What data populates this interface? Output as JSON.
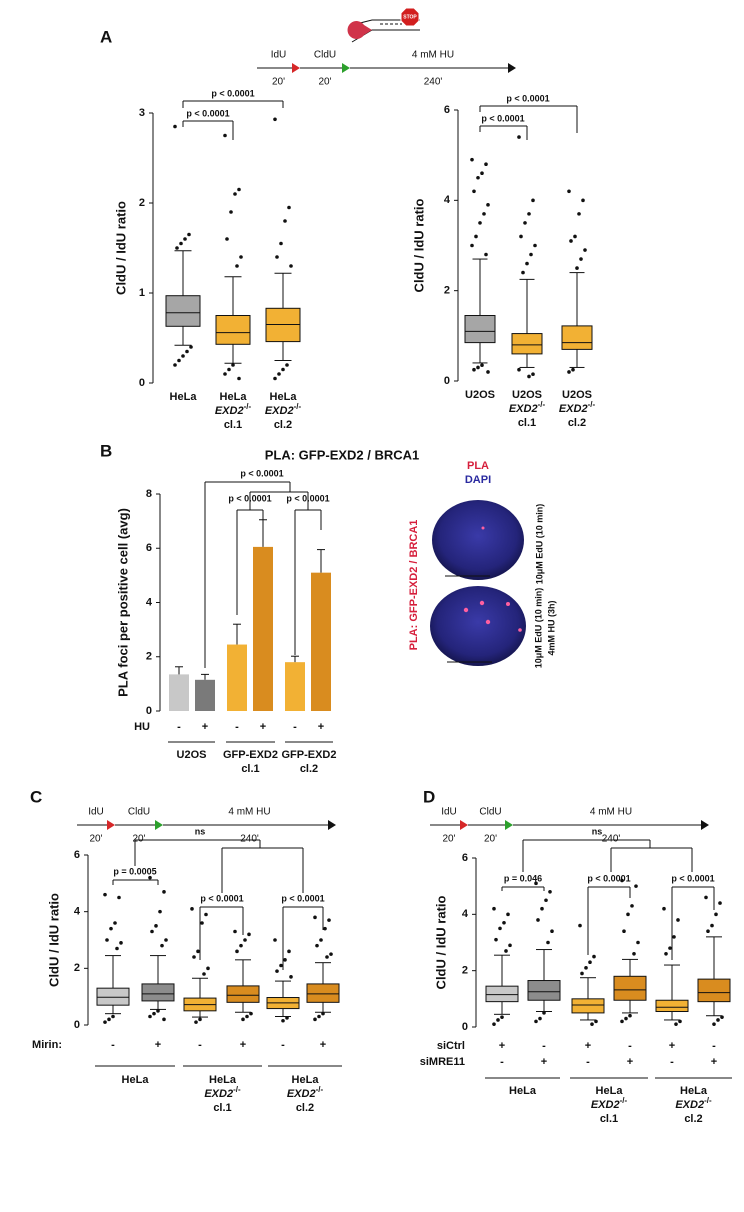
{
  "panels": [
    "A",
    "B",
    "C",
    "D"
  ],
  "fork_icon": "STOP",
  "schematics": [
    {
      "labels": [
        "IdU",
        "20'",
        "CldU",
        "20'",
        "4 mM HU",
        "240'"
      ]
    },
    {
      "labels": [
        "IdU",
        "20'",
        "CldU",
        "20'",
        "4 mM HU",
        "240'"
      ]
    },
    {
      "labels": [
        "IdU",
        "20'",
        "CldU",
        "20'",
        "4 mM HU",
        "240'"
      ]
    }
  ],
  "micrograph": {
    "legend": [
      "PLA",
      "DAPI"
    ],
    "stain_label": "PLA: GFP-EXD2 / BRCA1",
    "conditions": [
      [
        "10μM EdU (10 min)"
      ],
      [
        "10μM EdU (10 min)",
        "4mM HU (3h)"
      ]
    ]
  },
  "chart_data": [
    {
      "type": "box",
      "ylabel": "CldU / IdU ratio",
      "ylim": [
        0,
        3
      ],
      "yticks": [
        0,
        1,
        2,
        3
      ],
      "categories": [
        [
          "HeLa"
        ],
        [
          "HeLa",
          [
            "EXD2",
            "-/-"
          ],
          "cl.1"
        ],
        [
          "HeLa",
          [
            "EXD2",
            "-/-"
          ],
          "cl.2"
        ]
      ],
      "colors": [
        "#a6a6a6",
        "#f2b134",
        "#f2b134"
      ],
      "boxes": [
        {
          "low": 0.42,
          "q1": 0.63,
          "median": 0.78,
          "q3": 0.97,
          "high": 1.47,
          "outliers": [
            2.85,
            1.65,
            1.6,
            1.55,
            1.5,
            0.4,
            0.35,
            0.3,
            0.25,
            0.2
          ]
        },
        {
          "low": 0.22,
          "q1": 0.43,
          "median": 0.56,
          "q3": 0.75,
          "high": 1.18,
          "outliers": [
            2.75,
            2.15,
            2.1,
            1.9,
            1.6,
            1.4,
            1.3,
            0.2,
            0.15,
            0.1,
            0.05
          ]
        },
        {
          "low": 0.25,
          "q1": 0.46,
          "median": 0.65,
          "q3": 0.83,
          "high": 1.22,
          "outliers": [
            2.93,
            1.95,
            1.8,
            1.55,
            1.4,
            1.3,
            0.2,
            0.15,
            0.1,
            0.05
          ]
        }
      ],
      "annotations": [
        "p < 0.0001",
        "p < 0.0001"
      ]
    },
    {
      "type": "box",
      "ylabel": "CldU / IdU ratio",
      "ylim": [
        0,
        6
      ],
      "yticks": [
        0,
        2,
        4,
        6
      ],
      "categories": [
        [
          "U2OS"
        ],
        [
          "U2OS",
          [
            "EXD2",
            "-/-"
          ],
          "cl.1"
        ],
        [
          "U2OS",
          [
            "EXD2",
            "-/-"
          ],
          "cl.2"
        ]
      ],
      "colors": [
        "#a6a6a6",
        "#f2b134",
        "#f2b134"
      ],
      "boxes": [
        {
          "low": 0.4,
          "q1": 0.85,
          "median": 1.1,
          "q3": 1.45,
          "high": 2.7,
          "outliers": [
            4.9,
            4.8,
            4.6,
            4.5,
            4.2,
            3.9,
            3.7,
            3.5,
            3.2,
            3.0,
            2.8,
            0.35,
            0.3,
            0.25,
            0.2
          ]
        },
        {
          "low": 0.3,
          "q1": 0.6,
          "median": 0.8,
          "q3": 1.05,
          "high": 2.25,
          "outliers": [
            5.4,
            4.0,
            3.7,
            3.5,
            3.2,
            3.0,
            2.8,
            2.6,
            2.4,
            0.25,
            0.15,
            0.1
          ]
        },
        {
          "low": 0.3,
          "q1": 0.7,
          "median": 0.85,
          "q3": 1.22,
          "high": 2.4,
          "outliers": [
            4.2,
            4.0,
            3.7,
            3.2,
            3.1,
            2.9,
            2.7,
            2.5,
            0.25,
            0.2
          ]
        }
      ],
      "annotations": [
        "p < 0.0001",
        "p < 0.0001"
      ]
    },
    {
      "type": "bar",
      "title": "PLA: GFP-EXD2 / BRCA1",
      "ylabel": "PLA foci per positive cell (avg)",
      "ylim": [
        0,
        8
      ],
      "yticks": [
        0,
        2,
        4,
        6,
        8
      ],
      "values": [
        1.35,
        1.15,
        2.45,
        6.05,
        1.8,
        5.1
      ],
      "errors": [
        0.28,
        0.2,
        0.75,
        1.0,
        0.22,
        0.85
      ],
      "colors": [
        "#c8c8c8",
        "#7a7a7a",
        "#f2b134",
        "#d98c1f",
        "#f2b134",
        "#d98c1f"
      ],
      "treatment_rows": [
        {
          "name": "HU",
          "signs": [
            "-",
            "+",
            "-",
            "+",
            "-",
            "+"
          ]
        }
      ],
      "groups": [
        [
          "U2OS"
        ],
        [
          "GFP-EXD2",
          "cl.1"
        ],
        [
          "GFP-EXD2",
          "cl.2"
        ]
      ],
      "annotations": [
        "p < 0.0001",
        "p < 0.0001",
        "p < 0.0001"
      ]
    },
    {
      "type": "box",
      "ylabel": "CldU / IdU ratio",
      "ylim": [
        0,
        6
      ],
      "yticks": [
        0,
        2,
        4,
        6
      ],
      "colors": [
        "#c8c8c8",
        "#8c8c8c",
        "#f2b134",
        "#d98c1f",
        "#f2b134",
        "#d98c1f"
      ],
      "boxes": [
        {
          "low": 0.4,
          "q1": 0.7,
          "median": 0.98,
          "q3": 1.3,
          "high": 2.45,
          "outliers": [
            4.6,
            4.5,
            3.6,
            3.4,
            3.0,
            2.9,
            2.7,
            0.3,
            0.2,
            0.1
          ]
        },
        {
          "low": 0.55,
          "q1": 0.85,
          "median": 1.1,
          "q3": 1.45,
          "high": 2.45,
          "outliers": [
            5.2,
            4.7,
            4.0,
            3.5,
            3.3,
            3.0,
            2.8,
            0.5,
            0.4,
            0.3,
            0.2
          ]
        },
        {
          "low": 0.28,
          "q1": 0.5,
          "median": 0.72,
          "q3": 0.95,
          "high": 1.65,
          "outliers": [
            4.1,
            3.9,
            3.6,
            2.6,
            2.4,
            2.0,
            1.8,
            0.2,
            0.1
          ]
        },
        {
          "low": 0.45,
          "q1": 0.8,
          "median": 1.05,
          "q3": 1.38,
          "high": 2.3,
          "outliers": [
            3.3,
            3.2,
            3.0,
            2.8,
            2.6,
            0.4,
            0.3,
            0.2
          ]
        },
        {
          "low": 0.3,
          "q1": 0.58,
          "median": 0.78,
          "q3": 0.97,
          "high": 1.55,
          "outliers": [
            3.0,
            2.6,
            2.3,
            2.1,
            1.9,
            1.7,
            0.25,
            0.15
          ]
        },
        {
          "low": 0.45,
          "q1": 0.8,
          "median": 1.1,
          "q3": 1.45,
          "high": 2.2,
          "outliers": [
            3.8,
            3.7,
            3.4,
            3.0,
            2.8,
            2.5,
            2.4,
            0.4,
            0.3,
            0.2
          ]
        }
      ],
      "treatment_rows": [
        {
          "name": "Mirin:",
          "signs": [
            "-",
            "+",
            "-",
            "+",
            "-",
            "+"
          ]
        }
      ],
      "groups": [
        [
          "HeLa"
        ],
        [
          "HeLa",
          [
            "EXD2",
            "-/-"
          ],
          "cl.1"
        ],
        [
          "HeLa",
          [
            "EXD2",
            "-/-"
          ],
          "cl.2"
        ]
      ],
      "annotations": [
        "p = 0.0005",
        "p < 0.0001",
        "p < 0.0001",
        "ns"
      ]
    },
    {
      "type": "box",
      "ylabel": "CldU / IdU ratio",
      "ylim": [
        0,
        6
      ],
      "yticks": [
        0,
        2,
        4,
        6
      ],
      "colors": [
        "#c8c8c8",
        "#8c8c8c",
        "#f2b134",
        "#d98c1f",
        "#f2b134",
        "#d98c1f"
      ],
      "boxes": [
        {
          "low": 0.45,
          "q1": 0.9,
          "median": 1.15,
          "q3": 1.45,
          "high": 2.55,
          "outliers": [
            4.2,
            4.0,
            3.7,
            3.5,
            3.1,
            2.9,
            2.7,
            0.35,
            0.25,
            0.1
          ]
        },
        {
          "low": 0.55,
          "q1": 0.95,
          "median": 1.25,
          "q3": 1.65,
          "high": 2.75,
          "outliers": [
            5.1,
            4.8,
            4.5,
            4.2,
            3.8,
            3.4,
            3.0,
            0.5,
            0.3,
            0.2
          ]
        },
        {
          "low": 0.25,
          "q1": 0.5,
          "median": 0.78,
          "q3": 1.0,
          "high": 1.75,
          "outliers": [
            3.6,
            2.5,
            2.3,
            2.1,
            1.9,
            0.2,
            0.1
          ]
        },
        {
          "low": 0.5,
          "q1": 0.95,
          "median": 1.32,
          "q3": 1.8,
          "high": 2.4,
          "outliers": [
            5.2,
            5.0,
            4.3,
            4.0,
            3.4,
            3.0,
            2.6,
            0.4,
            0.3,
            0.2
          ]
        },
        {
          "low": 0.25,
          "q1": 0.55,
          "median": 0.7,
          "q3": 0.95,
          "high": 2.2,
          "outliers": [
            4.2,
            3.8,
            3.2,
            2.8,
            2.6,
            0.2,
            0.1
          ]
        },
        {
          "low": 0.4,
          "q1": 0.9,
          "median": 1.22,
          "q3": 1.7,
          "high": 3.2,
          "outliers": [
            4.6,
            4.4,
            4.0,
            3.6,
            3.4,
            0.35,
            0.25,
            0.1
          ]
        }
      ],
      "treatment_rows": [
        {
          "name": "siCtrl",
          "signs": [
            "+",
            "-",
            "+",
            "-",
            "+",
            "-"
          ]
        },
        {
          "name": "siMRE11",
          "signs": [
            "-",
            "+",
            "-",
            "+",
            "-",
            "+"
          ]
        }
      ],
      "groups": [
        [
          "HeLa"
        ],
        [
          "HeLa",
          [
            "EXD2",
            "-/-"
          ],
          "cl.1"
        ],
        [
          "HeLa",
          [
            "EXD2",
            "-/-"
          ],
          "cl.2"
        ]
      ],
      "annotations": [
        "p = 0.046",
        "p < 0.0001",
        "p < 0.0001",
        "ns"
      ]
    }
  ]
}
